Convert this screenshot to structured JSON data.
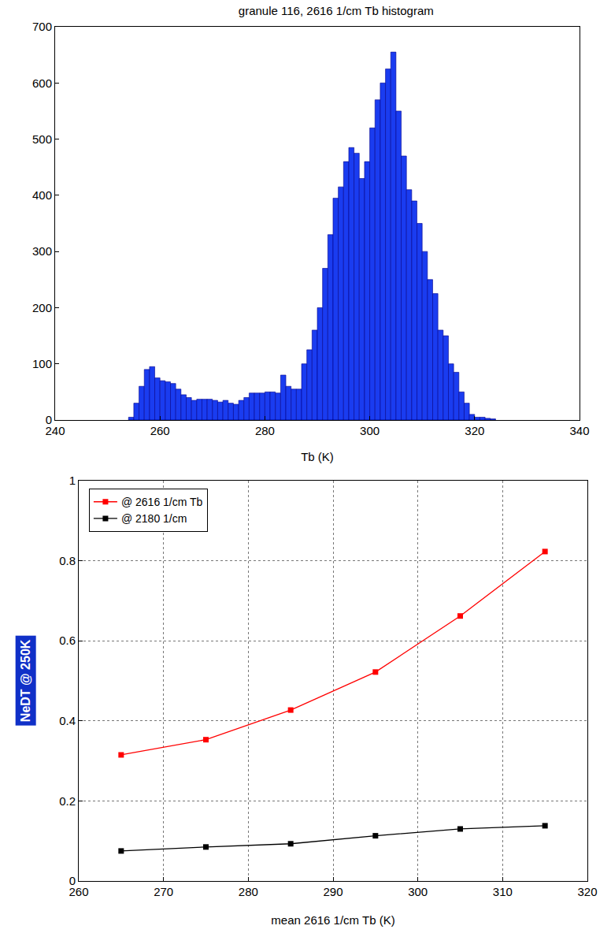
{
  "chart_data": [
    {
      "type": "histogram",
      "title": "granule 116, 2616 1/cm Tb histogram",
      "x_label": "Tb (K)",
      "bins": [
        254,
        255,
        256,
        257,
        258,
        259,
        260,
        261,
        262,
        263,
        264,
        265,
        266,
        267,
        268,
        269,
        270,
        271,
        272,
        273,
        274,
        275,
        276,
        277,
        278,
        279,
        280,
        281,
        282,
        283,
        284,
        285,
        286,
        287,
        288,
        289,
        290,
        291,
        292,
        293,
        294,
        295,
        296,
        297,
        298,
        299,
        300,
        301,
        302,
        303,
        304,
        305,
        306,
        307,
        308,
        309,
        310,
        311,
        312,
        313,
        314,
        315,
        316,
        317,
        318,
        319,
        320,
        321,
        322,
        323,
        324
      ],
      "values": [
        5,
        30,
        60,
        90,
        95,
        75,
        70,
        68,
        65,
        55,
        45,
        40,
        35,
        37,
        37,
        37,
        35,
        32,
        35,
        30,
        28,
        35,
        40,
        48,
        48,
        48,
        50,
        50,
        48,
        80,
        60,
        55,
        55,
        100,
        125,
        160,
        200,
        270,
        330,
        395,
        415,
        460,
        485,
        475,
        430,
        460,
        520,
        570,
        600,
        625,
        655,
        550,
        470,
        410,
        390,
        350,
        300,
        250,
        225,
        160,
        150,
        100,
        85,
        50,
        30,
        10,
        5,
        5,
        3,
        2
      ],
      "color": "#1a3cf0",
      "xlim": [
        240,
        340
      ],
      "xticks": [
        240,
        260,
        280,
        300,
        320,
        340
      ],
      "ylim": [
        0,
        700
      ],
      "yticks": [
        0,
        100,
        200,
        300,
        400,
        500,
        600,
        700
      ],
      "grid": false
    },
    {
      "type": "line",
      "x_label": "mean 2616 1/cm Tb (K)",
      "y_label": "NeDT @ 250K",
      "x": [
        265,
        275,
        285,
        295,
        305,
        315
      ],
      "series": [
        {
          "name": "@ 2616 1/cm Tb",
          "color": "#ff0000",
          "marker": "square",
          "values": [
            0.315,
            0.353,
            0.427,
            0.522,
            0.662,
            0.823
          ]
        },
        {
          "name": "@ 2180 1/cm",
          "color": "#000000",
          "marker": "square",
          "values": [
            0.075,
            0.085,
            0.093,
            0.113,
            0.13,
            0.138
          ]
        }
      ],
      "xlim": [
        260,
        320
      ],
      "xticks": [
        260,
        270,
        280,
        290,
        300,
        310,
        320
      ],
      "ylim": [
        0,
        1
      ],
      "yticks": [
        0,
        0.2,
        0.4,
        0.6,
        0.8,
        1
      ],
      "grid": true,
      "legend": "upper left"
    }
  ]
}
